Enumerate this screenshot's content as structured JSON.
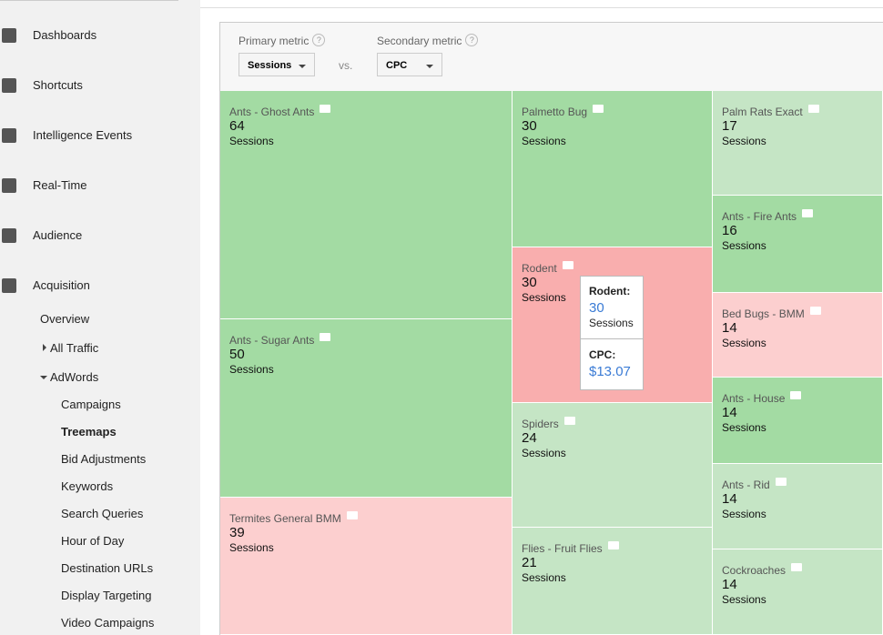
{
  "sidebar": {
    "items": [
      "Dashboards",
      "Shortcuts",
      "Intelligence Events",
      "Real-Time",
      "Audience",
      "Acquisition"
    ],
    "subitems": [
      "Overview",
      "All Traffic",
      "AdWords"
    ],
    "adwords_items": [
      "Campaigns",
      "Treemaps",
      "Bid Adjustments",
      "Keywords",
      "Search Queries",
      "Hour of Day",
      "Destination URLs",
      "Display Targeting",
      "Video Campaigns"
    ]
  },
  "controls": {
    "primary_label": "Primary metric",
    "primary_value": "Sessions",
    "vs": "vs.",
    "secondary_label": "Secondary metric",
    "secondary_value": "CPC",
    "help": "?"
  },
  "treemap": {
    "tiles": [
      {
        "label": "Ants - Ghost Ants",
        "value": "64",
        "unit": "Sessions"
      },
      {
        "label": "Ants - Sugar Ants",
        "value": "50",
        "unit": "Sessions"
      },
      {
        "label": "Termites General BMM",
        "value": "39",
        "unit": "Sessions"
      },
      {
        "label": "Palmetto Bug",
        "value": "30",
        "unit": "Sessions"
      },
      {
        "label": "Rodent",
        "value": "30",
        "unit": "Sessions"
      },
      {
        "label": "Spiders",
        "value": "24",
        "unit": "Sessions"
      },
      {
        "label": "Flies - Fruit Flies",
        "value": "21",
        "unit": "Sessions"
      },
      {
        "label": "Palm Rats Exact",
        "value": "17",
        "unit": "Sessions"
      },
      {
        "label": "Ants - Fire Ants",
        "value": "16",
        "unit": "Sessions"
      },
      {
        "label": "Bed Bugs - BMM",
        "value": "14",
        "unit": "Sessions"
      },
      {
        "label": "Ants - House",
        "value": "14",
        "unit": "Sessions"
      },
      {
        "label": "Ants - Rid",
        "value": "14",
        "unit": "Sessions"
      },
      {
        "label": "Cockroaches",
        "value": "14",
        "unit": "Sessions"
      }
    ]
  },
  "tooltip": {
    "title": "Rodent:",
    "value": "30",
    "unit": "Sessions",
    "secondary_title": "CPC:",
    "secondary_value": "$13.07"
  }
}
